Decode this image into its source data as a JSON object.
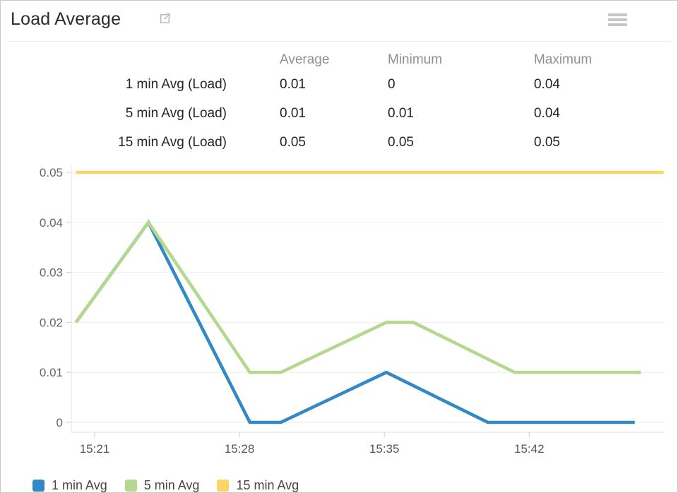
{
  "header": {
    "title": "Load Average",
    "icons": [
      {
        "name": "external-link-icon",
        "color": "#b9b9b9"
      },
      {
        "name": "menu-icon",
        "color": "#c6c6c6"
      }
    ]
  },
  "summary_table": {
    "columns": [
      "Average",
      "Minimum",
      "Maximum"
    ],
    "rows": [
      {
        "label": "1 min Avg (Load)",
        "average": "0.01",
        "minimum": "0",
        "maximum": "0.04"
      },
      {
        "label": "5 min Avg (Load)",
        "average": "0.01",
        "minimum": "0.01",
        "maximum": "0.04"
      },
      {
        "label": "15 min Avg (Load)",
        "average": "0.05",
        "minimum": "0.05",
        "maximum": "0.05"
      }
    ]
  },
  "chart_data": {
    "type": "line",
    "title": "Load Average",
    "x_axis": {
      "unit": "time of day (HH:MM), points given as minutes after 15:00",
      "tick_labels": [
        "15:21",
        "15:28",
        "15:35",
        "15:42"
      ],
      "tick_minutes": [
        21,
        28,
        35,
        42
      ],
      "domain_minutes": [
        19.9,
        48.6
      ]
    },
    "y_axis": {
      "ticks": [
        0,
        0.01,
        0.02,
        0.03,
        0.04,
        0.05
      ],
      "range": [
        0,
        0.05
      ]
    },
    "grid": "horizontal",
    "legend_position": "bottom-left",
    "series": [
      {
        "name": "1 min Avg",
        "color": "#3389c5",
        "points": [
          [
            20.1,
            0.02
          ],
          [
            23.6,
            0.04
          ],
          [
            28.5,
            0
          ],
          [
            30.0,
            0
          ],
          [
            35.1,
            0.01
          ],
          [
            40.0,
            0
          ],
          [
            47.1,
            0
          ]
        ]
      },
      {
        "name": "5 min Avg",
        "color": "#b4d88e",
        "points": [
          [
            20.1,
            0.02
          ],
          [
            23.6,
            0.04
          ],
          [
            28.5,
            0.01
          ],
          [
            30.0,
            0.01
          ],
          [
            35.1,
            0.02
          ],
          [
            36.4,
            0.02
          ],
          [
            41.3,
            0.01
          ],
          [
            47.4,
            0.01
          ]
        ]
      },
      {
        "name": "15 min Avg",
        "color": "#fbd666",
        "points": [
          [
            20.1,
            0.05
          ],
          [
            48.5,
            0.05
          ]
        ]
      }
    ]
  },
  "legend": {
    "items": [
      {
        "label": "1 min Avg",
        "color": "#3389c5"
      },
      {
        "label": "5 min Avg",
        "color": "#b4d88e"
      },
      {
        "label": "15 min Avg",
        "color": "#fbd666"
      }
    ]
  },
  "colors": {
    "grid_line": "#ededed",
    "axis_line": "#e0e0e0",
    "tick_mark": "#cccccc",
    "axis_label": "#666666",
    "table_header": "#8f8f8f",
    "text_dark": "#242424"
  }
}
